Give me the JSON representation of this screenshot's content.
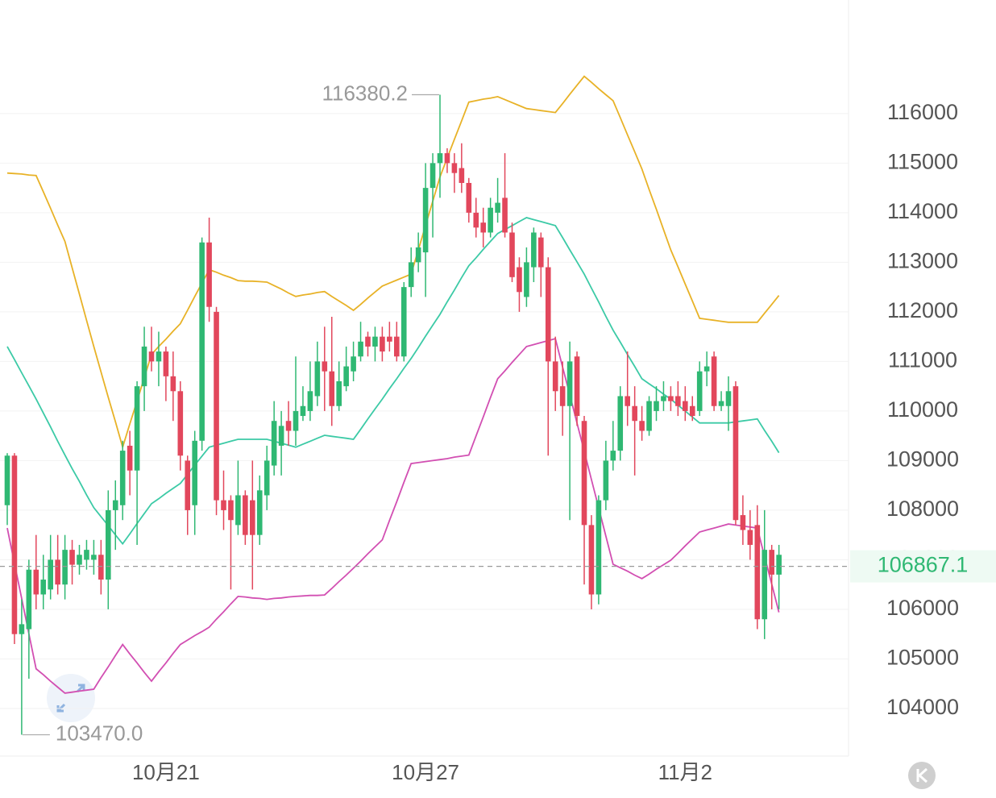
{
  "chart_data": {
    "type": "candlestick",
    "categories": [
      null,
      null,
      null,
      null,
      null,
      null,
      null,
      null,
      null,
      null,
      null,
      null,
      null,
      null,
      null,
      null,
      null,
      null,
      null,
      null,
      null,
      null,
      "10月21",
      null,
      null,
      null,
      null,
      null,
      null,
      null,
      null,
      null,
      null,
      null,
      null,
      null,
      null,
      null,
      null,
      null,
      null,
      null,
      null,
      null,
      null,
      null,
      null,
      null,
      null,
      null,
      null,
      null,
      null,
      null,
      null,
      null,
      null,
      null,
      "10月27",
      null,
      null,
      null,
      null,
      null,
      null,
      null,
      null,
      null,
      null,
      null,
      null,
      null,
      null,
      null,
      null,
      null,
      null,
      null,
      null,
      null,
      null,
      null,
      null,
      null,
      null,
      null,
      null,
      null,
      null,
      null,
      null,
      null,
      null,
      null,
      "11月2",
      null,
      null,
      null,
      null,
      null,
      null,
      null,
      null,
      null,
      null,
      null,
      null,
      null
    ],
    "open": [
      108100,
      109100,
      105500,
      105600,
      106800,
      106300,
      106400,
      107000,
      106500,
      107200,
      106900,
      107000,
      107000,
      107100,
      106600,
      108000,
      108100,
      109300,
      108800,
      110500,
      111200,
      111000,
      111200,
      110700,
      110400,
      109000,
      108100,
      109400,
      113400,
      112000,
      108200,
      108200,
      107700,
      108300,
      108200,
      107500,
      108300,
      108900,
      109300,
      109800,
      109600,
      109900,
      110000,
      110300,
      111000,
      110800,
      110100,
      110500,
      110800,
      111100,
      111500,
      111300,
      111500,
      111500,
      111500,
      111100,
      112500,
      113000,
      113200,
      114500,
      115000,
      115200,
      115000,
      114900,
      114600,
      114000,
      113800,
      113600,
      114000,
      114300,
      113600,
      112900,
      112300,
      112900,
      113500,
      112900,
      111000,
      110500,
      110100,
      111100,
      109800,
      107700,
      106300,
      108200,
      109000,
      109200,
      110300,
      110100,
      109800,
      109600,
      110000,
      110200,
      110300,
      110300,
      110200,
      110100,
      110000,
      110800,
      111100,
      110100,
      110100,
      110500,
      107900,
      107600,
      107700,
      105800,
      107200,
      106700
    ],
    "close": [
      109100,
      105500,
      105700,
      106800,
      106300,
      106600,
      107000,
      106500,
      107200,
      106900,
      107100,
      107200,
      107100,
      106600,
      108000,
      108200,
      109200,
      108800,
      110500,
      111300,
      111000,
      111200,
      110700,
      110400,
      109100,
      108000,
      109400,
      113400,
      112100,
      108200,
      108000,
      107800,
      108300,
      107500,
      107500,
      108400,
      109000,
      109800,
      109700,
      109600,
      110000,
      110100,
      110400,
      111000,
      110800,
      110100,
      110600,
      110900,
      111100,
      111400,
      111300,
      111500,
      111200,
      111400,
      111100,
      112500,
      113000,
      113300,
      114500,
      115000,
      115200,
      115000,
      114800,
      114600,
      114000,
      113700,
      113600,
      114100,
      114200,
      113600,
      112700,
      112400,
      113000,
      113600,
      112900,
      111000,
      110400,
      110100,
      111000,
      109900,
      107700,
      106300,
      108200,
      109000,
      109200,
      110300,
      110100,
      109800,
      109600,
      110200,
      110200,
      110300,
      110200,
      110100,
      110000,
      109900,
      110800,
      110900,
      110100,
      110200,
      110400,
      107800,
      107600,
      107300,
      105800,
      107200,
      106700,
      107100
    ],
    "high": [
      109150,
      109150,
      106200,
      107000,
      107500,
      107100,
      107500,
      107500,
      107500,
      107400,
      107300,
      107400,
      107400,
      107400,
      108400,
      108600,
      109400,
      109600,
      110600,
      111700,
      111700,
      111600,
      111300,
      111200,
      110600,
      109100,
      109600,
      113500,
      113900,
      112100,
      108800,
      108300,
      109000,
      108400,
      109000,
      108700,
      109300,
      110200,
      110000,
      110200,
      111100,
      110500,
      111000,
      111400,
      111700,
      111900,
      111000,
      111300,
      111400,
      111800,
      111600,
      111700,
      111700,
      111800,
      111800,
      112600,
      113300,
      113600,
      115000,
      115200,
      116380.2,
      115300,
      115200,
      115400,
      114700,
      114300,
      114100,
      114300,
      114700,
      115200,
      113800,
      113100,
      113300,
      113700,
      113600,
      113100,
      111500,
      111000,
      111400,
      111200,
      109900,
      107900,
      108300,
      109400,
      109800,
      110500,
      111200,
      110500,
      110100,
      110300,
      110500,
      110600,
      110500,
      110600,
      110500,
      110300,
      111000,
      111200,
      111200,
      110400,
      110700,
      110600,
      108300,
      108000,
      108100,
      108000,
      107300,
      107300
    ],
    "low": [
      107700,
      105300,
      103470,
      104600,
      106000,
      106000,
      106200,
      106300,
      106200,
      106500,
      106700,
      106800,
      106700,
      106300,
      106000,
      107200,
      107800,
      108300,
      107300,
      110000,
      110800,
      110500,
      110200,
      109800,
      108800,
      107500,
      107500,
      109200,
      111800,
      107900,
      107600,
      106400,
      107500,
      107300,
      106400,
      107300,
      108000,
      108700,
      108700,
      109300,
      109300,
      109800,
      109800,
      110100,
      110000,
      109700,
      110000,
      110400,
      110600,
      111000,
      111100,
      111000,
      111000,
      111200,
      111000,
      111000,
      112300,
      112800,
      112300,
      113500,
      114300,
      114800,
      114400,
      114400,
      113800,
      113500,
      113300,
      113500,
      113800,
      113500,
      112600,
      112000,
      112100,
      112600,
      112300,
      109100,
      110000,
      109500,
      107800,
      109700,
      106500,
      106000,
      106100,
      108000,
      108800,
      109000,
      109700,
      108700,
      109400,
      109500,
      109800,
      110000,
      110000,
      109900,
      109800,
      109800,
      109900,
      110500,
      110000,
      110000,
      109600,
      107700,
      107300,
      107000,
      105600,
      105400,
      106000,
      106000
    ],
    "up_color": "#2fb873",
    "down_color": "#e2475c",
    "series": [
      {
        "color": "#e8b227",
        "values": [
          114800,
          114790,
          114780,
          114760,
          114750,
          114420,
          114090,
          113750,
          113420,
          112890,
          112360,
          111830,
          111300,
          110790,
          110280,
          109780,
          109270,
          109740,
          110200,
          110670,
          111140,
          111300,
          111450,
          111610,
          111760,
          112030,
          112310,
          112580,
          112850,
          112800,
          112740,
          112690,
          112630,
          112620,
          112620,
          112610,
          112600,
          112530,
          112460,
          112380,
          112310,
          112340,
          112360,
          112390,
          112410,
          112310,
          112220,
          112130,
          112030,
          112150,
          112280,
          112400,
          112520,
          112580,
          112640,
          112700,
          112760,
          113250,
          113740,
          114230,
          114720,
          115100,
          115480,
          115850,
          116230,
          116260,
          116290,
          116310,
          116340,
          116280,
          116220,
          116160,
          116100,
          116080,
          116060,
          116040,
          116020,
          116200,
          116390,
          116570,
          116750,
          116630,
          116500,
          116380,
          116260,
          115920,
          115570,
          115230,
          114880,
          114470,
          114070,
          113660,
          113250,
          112910,
          112560,
          112220,
          111870,
          111850,
          111830,
          111810,
          111790,
          111790,
          111790,
          111790,
          111790,
          111970,
          112150,
          112330
        ]
      },
      {
        "color": "#3ccaa6",
        "values": [
          111300,
          111040,
          110770,
          110510,
          110240,
          109960,
          109680,
          109390,
          109110,
          108840,
          108580,
          108310,
          108050,
          107870,
          107690,
          107500,
          107320,
          107520,
          107730,
          107930,
          108130,
          108230,
          108340,
          108440,
          108540,
          108720,
          108910,
          109090,
          109270,
          109310,
          109350,
          109390,
          109430,
          109430,
          109430,
          109430,
          109430,
          109390,
          109350,
          109310,
          109270,
          109330,
          109390,
          109450,
          109510,
          109490,
          109470,
          109450,
          109430,
          109630,
          109840,
          110040,
          110240,
          110450,
          110650,
          110860,
          111060,
          111280,
          111510,
          111730,
          111950,
          112200,
          112440,
          112690,
          112930,
          113090,
          113260,
          113420,
          113580,
          113660,
          113740,
          113820,
          113900,
          113860,
          113820,
          113780,
          113740,
          113500,
          113250,
          113010,
          112760,
          112480,
          112200,
          111910,
          111630,
          111390,
          111140,
          110900,
          110650,
          110550,
          110450,
          110340,
          110240,
          110120,
          110000,
          109880,
          109760,
          109760,
          109760,
          109760,
          109760,
          109780,
          109800,
          109820,
          109840,
          109610,
          109390,
          109160
        ]
      },
      {
        "color": "#d24fb2",
        "values": [
          107640,
          106930,
          106220,
          105510,
          104800,
          104680,
          104550,
          104430,
          104310,
          104330,
          104350,
          104370,
          104390,
          104620,
          104840,
          105070,
          105290,
          105100,
          104920,
          104730,
          104550,
          104740,
          104920,
          105110,
          105290,
          105380,
          105470,
          105550,
          105640,
          105800,
          105950,
          106110,
          106260,
          106250,
          106230,
          106220,
          106200,
          106220,
          106230,
          106250,
          106260,
          106270,
          106280,
          106280,
          106290,
          106420,
          106560,
          106690,
          106830,
          106970,
          107120,
          107260,
          107400,
          107790,
          108170,
          108560,
          108940,
          108960,
          108980,
          109000,
          109020,
          109040,
          109070,
          109090,
          109110,
          109500,
          109880,
          110270,
          110650,
          110810,
          110980,
          111140,
          111300,
          111340,
          111380,
          111420,
          111460,
          110890,
          110330,
          109760,
          109190,
          108620,
          108050,
          107480,
          106910,
          106840,
          106770,
          106690,
          106620,
          106710,
          106810,
          106900,
          106990,
          107130,
          107280,
          107420,
          107560,
          107600,
          107640,
          107680,
          107720,
          107700,
          107680,
          107660,
          107640,
          107070,
          106510,
          105940
        ]
      }
    ],
    "ylim": [
      103040,
      118290
    ],
    "yticks": [
      104000,
      105000,
      106000,
      107000,
      108000,
      109000,
      110000,
      111000,
      112000,
      113000,
      114000,
      115000,
      116000
    ],
    "grid": true,
    "last_price": 106867.1,
    "max_label": 116380.2,
    "min_label": {
      "value": 103470,
      "label": "103470.0"
    }
  }
}
